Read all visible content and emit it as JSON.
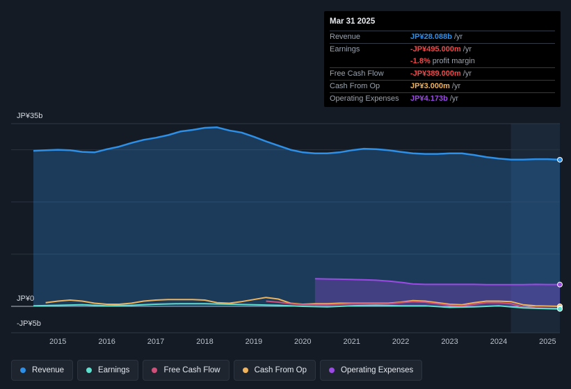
{
  "tooltip": {
    "date": "Mar 31 2025",
    "rows": [
      {
        "label": "Revenue",
        "value": "JP¥28.088b",
        "unit": "/yr",
        "color": "#2e8fe6"
      },
      {
        "label": "Earnings",
        "value": "-JP¥495.000m",
        "unit": "/yr",
        "color": "#ef4a4a"
      },
      {
        "label": "",
        "value": "-1.8%",
        "unit": "profit margin",
        "color": "#ef4a4a"
      },
      {
        "label": "Free Cash Flow",
        "value": "-JP¥389.000m",
        "unit": "/yr",
        "color": "#ef4a4a"
      },
      {
        "label": "Cash From Op",
        "value": "JP¥3.000m",
        "unit": "/yr",
        "color": "#f0b45c"
      },
      {
        "label": "Operating Expenses",
        "value": "JP¥4.173b",
        "unit": "/yr",
        "color": "#9b4be4"
      }
    ]
  },
  "legend": [
    {
      "label": "Revenue",
      "color": "#2e8fe6"
    },
    {
      "label": "Earnings",
      "color": "#5ee0cf"
    },
    {
      "label": "Free Cash Flow",
      "color": "#d0507a"
    },
    {
      "label": "Cash From Op",
      "color": "#f0b45c"
    },
    {
      "label": "Operating Expenses",
      "color": "#9b4be4"
    }
  ],
  "chart_data": {
    "type": "area",
    "title": "",
    "xlabel": "",
    "ylabel": "",
    "unit": "JP¥b",
    "ylim": [
      -5,
      35
    ],
    "y_tick_labels": [
      {
        "value": 35,
        "label": "JP¥35b"
      },
      {
        "value": 0,
        "label": "JP¥0"
      },
      {
        "value": -5,
        "label": "-JP¥5b"
      }
    ],
    "xlim": [
      2014.5,
      2025.25
    ],
    "x_ticks": [
      2015,
      2016,
      2017,
      2018,
      2019,
      2020,
      2021,
      2022,
      2023,
      2024,
      2025
    ],
    "forecast_region_start": 2024.25,
    "series": [
      {
        "name": "Revenue",
        "color": "#2e8fe6",
        "fill": true,
        "points": [
          [
            2014.5,
            29.8
          ],
          [
            2014.75,
            29.9
          ],
          [
            2015.0,
            30.0
          ],
          [
            2015.25,
            29.9
          ],
          [
            2015.5,
            29.6
          ],
          [
            2015.75,
            29.5
          ],
          [
            2016.0,
            30.1
          ],
          [
            2016.25,
            30.6
          ],
          [
            2016.5,
            31.3
          ],
          [
            2016.75,
            31.9
          ],
          [
            2017.0,
            32.3
          ],
          [
            2017.25,
            32.8
          ],
          [
            2017.5,
            33.5
          ],
          [
            2017.75,
            33.8
          ],
          [
            2018.0,
            34.2
          ],
          [
            2018.25,
            34.3
          ],
          [
            2018.5,
            33.7
          ],
          [
            2018.75,
            33.3
          ],
          [
            2019.0,
            32.5
          ],
          [
            2019.25,
            31.6
          ],
          [
            2019.5,
            30.8
          ],
          [
            2019.75,
            30.0
          ],
          [
            2020.0,
            29.5
          ],
          [
            2020.25,
            29.3
          ],
          [
            2020.5,
            29.3
          ],
          [
            2020.75,
            29.5
          ],
          [
            2021.0,
            29.9
          ],
          [
            2021.25,
            30.2
          ],
          [
            2021.5,
            30.1
          ],
          [
            2021.75,
            29.9
          ],
          [
            2022.0,
            29.6
          ],
          [
            2022.25,
            29.3
          ],
          [
            2022.5,
            29.2
          ],
          [
            2022.75,
            29.2
          ],
          [
            2023.0,
            29.3
          ],
          [
            2023.25,
            29.3
          ],
          [
            2023.5,
            29.0
          ],
          [
            2023.75,
            28.6
          ],
          [
            2024.0,
            28.3
          ],
          [
            2024.25,
            28.1
          ],
          [
            2024.5,
            28.1
          ],
          [
            2024.75,
            28.2
          ],
          [
            2025.0,
            28.2
          ],
          [
            2025.25,
            28.088
          ]
        ]
      },
      {
        "name": "Operating Expenses",
        "color": "#9b4be4",
        "fill": true,
        "points": [
          [
            2020.25,
            5.3
          ],
          [
            2020.5,
            5.25
          ],
          [
            2020.75,
            5.2
          ],
          [
            2021.0,
            5.15
          ],
          [
            2021.25,
            5.1
          ],
          [
            2021.5,
            5.0
          ],
          [
            2021.75,
            4.85
          ],
          [
            2022.0,
            4.6
          ],
          [
            2022.25,
            4.3
          ],
          [
            2022.5,
            4.2
          ],
          [
            2022.75,
            4.2
          ],
          [
            2023.0,
            4.2
          ],
          [
            2023.25,
            4.2
          ],
          [
            2023.5,
            4.2
          ],
          [
            2023.75,
            4.15
          ],
          [
            2024.0,
            4.15
          ],
          [
            2024.25,
            4.15
          ],
          [
            2024.5,
            4.15
          ],
          [
            2024.75,
            4.2
          ],
          [
            2025.0,
            4.18
          ],
          [
            2025.25,
            4.173
          ]
        ]
      },
      {
        "name": "Cash From Op",
        "color": "#f0b45c",
        "fill": false,
        "points": [
          [
            2014.75,
            0.7
          ],
          [
            2015.0,
            1.0
          ],
          [
            2015.25,
            1.2
          ],
          [
            2015.5,
            1.0
          ],
          [
            2015.75,
            0.6
          ],
          [
            2016.0,
            0.4
          ],
          [
            2016.25,
            0.4
          ],
          [
            2016.5,
            0.6
          ],
          [
            2016.75,
            1.0
          ],
          [
            2017.0,
            1.2
          ],
          [
            2017.25,
            1.3
          ],
          [
            2017.5,
            1.3
          ],
          [
            2017.75,
            1.3
          ],
          [
            2018.0,
            1.2
          ],
          [
            2018.25,
            0.7
          ],
          [
            2018.5,
            0.6
          ],
          [
            2018.75,
            0.9
          ],
          [
            2019.0,
            1.3
          ],
          [
            2019.25,
            1.7
          ],
          [
            2019.5,
            1.4
          ],
          [
            2019.75,
            0.6
          ],
          [
            2020.0,
            0.4
          ],
          [
            2020.25,
            0.5
          ],
          [
            2020.5,
            0.5
          ],
          [
            2020.75,
            0.6
          ],
          [
            2021.0,
            0.6
          ],
          [
            2021.25,
            0.6
          ],
          [
            2021.5,
            0.6
          ],
          [
            2021.75,
            0.6
          ],
          [
            2022.0,
            0.8
          ],
          [
            2022.25,
            1.1
          ],
          [
            2022.5,
            1.0
          ],
          [
            2022.75,
            0.7
          ],
          [
            2023.0,
            0.4
          ],
          [
            2023.25,
            0.3
          ],
          [
            2023.5,
            0.7
          ],
          [
            2023.75,
            1.0
          ],
          [
            2024.0,
            1.0
          ],
          [
            2024.25,
            0.9
          ],
          [
            2024.5,
            0.3
          ],
          [
            2024.75,
            0.1
          ],
          [
            2025.0,
            0.05
          ],
          [
            2025.25,
            0.003
          ]
        ]
      },
      {
        "name": "Free Cash Flow",
        "color": "#d0507a",
        "fill": false,
        "points": [
          [
            2019.25,
            1.0
          ],
          [
            2019.5,
            0.8
          ],
          [
            2019.75,
            0.5
          ],
          [
            2020.0,
            0.3
          ],
          [
            2020.25,
            0.3
          ],
          [
            2020.5,
            0.3
          ],
          [
            2020.75,
            0.4
          ],
          [
            2021.0,
            0.5
          ],
          [
            2021.25,
            0.5
          ],
          [
            2021.5,
            0.5
          ],
          [
            2021.75,
            0.5
          ],
          [
            2022.0,
            0.7
          ],
          [
            2022.25,
            0.9
          ],
          [
            2022.5,
            0.8
          ],
          [
            2022.75,
            0.5
          ],
          [
            2023.0,
            0.2
          ],
          [
            2023.25,
            0.1
          ],
          [
            2023.5,
            0.4
          ],
          [
            2023.75,
            0.7
          ],
          [
            2024.0,
            0.7
          ],
          [
            2024.25,
            0.5
          ],
          [
            2024.5,
            -0.1
          ],
          [
            2024.75,
            -0.3
          ],
          [
            2025.0,
            -0.35
          ],
          [
            2025.25,
            -0.389
          ]
        ]
      },
      {
        "name": "Earnings",
        "color": "#5ee0cf",
        "fill": false,
        "points": [
          [
            2014.5,
            0.1
          ],
          [
            2015.0,
            0.2
          ],
          [
            2015.5,
            0.3
          ],
          [
            2016.0,
            0.1
          ],
          [
            2016.5,
            0.2
          ],
          [
            2017.0,
            0.4
          ],
          [
            2017.5,
            0.5
          ],
          [
            2018.0,
            0.5
          ],
          [
            2018.5,
            0.4
          ],
          [
            2019.0,
            0.3
          ],
          [
            2019.5,
            0.2
          ],
          [
            2020.0,
            0.0
          ],
          [
            2020.5,
            -0.1
          ],
          [
            2021.0,
            0.1
          ],
          [
            2021.5,
            0.2
          ],
          [
            2022.0,
            0.1
          ],
          [
            2022.5,
            0.1
          ],
          [
            2023.0,
            -0.2
          ],
          [
            2023.5,
            -0.1
          ],
          [
            2024.0,
            0.1
          ],
          [
            2024.5,
            -0.3
          ],
          [
            2025.0,
            -0.45
          ],
          [
            2025.25,
            -0.495
          ]
        ]
      }
    ]
  }
}
